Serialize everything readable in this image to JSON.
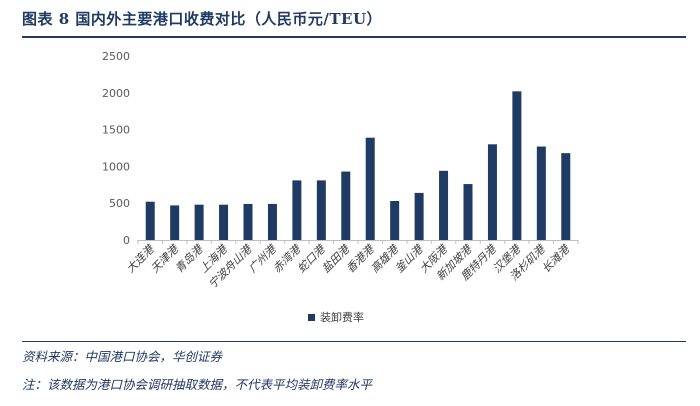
{
  "header": {
    "title": "图表 8   国内外主要港口收费对比（人民币元/TEU）"
  },
  "footer": {
    "source": "资料来源：中国港口协会，华创证券",
    "note": "注：该数据为港口协会调研抽取数据，不代表平均装卸费率水平"
  },
  "colors": {
    "bar": "#1f3a63",
    "axis": "#bfbfbf",
    "text": "#1f3a63"
  },
  "chart_data": {
    "type": "bar",
    "title": "国内外主要港口收费对比（人民币元/TEU）",
    "xlabel": "",
    "ylabel": "",
    "ylim": [
      0,
      2500
    ],
    "yticks": [
      0,
      500,
      1000,
      1500,
      2000,
      2500
    ],
    "grid": false,
    "legend_position": "bottom",
    "categories": [
      "大连港",
      "天津港",
      "青岛港",
      "上海港",
      "宁波舟山港",
      "广州港",
      "赤湾港",
      "蛇口港",
      "盐田港",
      "香港港",
      "高雄港",
      "釜山港",
      "大阪港",
      "新加坡港",
      "鹿特丹港",
      "汉堡港",
      "洛杉矶港",
      "长滩港"
    ],
    "series": [
      {
        "name": "装卸费率",
        "values": [
          520,
          470,
          480,
          480,
          490,
          490,
          810,
          810,
          930,
          1390,
          530,
          640,
          940,
          760,
          1300,
          2020,
          1270,
          1180
        ]
      }
    ]
  }
}
